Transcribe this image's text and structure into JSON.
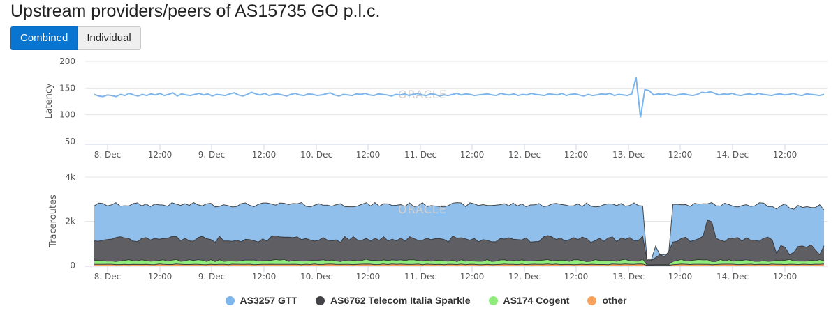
{
  "page": {
    "title": "Upstream providers/peers of AS15735 GO p.l.c.",
    "buttons": {
      "combined": "Combined",
      "individual": "Individual"
    }
  },
  "colors": {
    "latency": "#7cb5ec",
    "gtt": "#90bfec",
    "sparkle": "#5f5f63",
    "cogent": "#90ed7d",
    "other": "#f7a35c",
    "grid": "#e6e6e6"
  },
  "watermark": "ORACLE",
  "chart_data": [
    {
      "type": "line",
      "ylabel": "Latency",
      "ylim": [
        50,
        200
      ],
      "yticks": [
        "50",
        "100",
        "150",
        "200"
      ],
      "x_ticks": [
        "8. Dec",
        "12:00",
        "9. Dec",
        "12:00",
        "10. Dec",
        "12:00",
        "11. Dec",
        "12:00",
        "12. Dec",
        "12:00",
        "13. Dec",
        "12:00",
        "14. Dec",
        "12:00"
      ],
      "series": [
        {
          "name": "",
          "values": [
            138,
            135,
            134,
            137,
            136,
            134,
            138,
            136,
            140,
            137,
            135,
            138,
            136,
            139,
            137,
            140,
            136,
            138,
            141,
            135,
            139,
            137,
            136,
            138,
            140,
            137,
            139,
            135,
            138,
            137,
            136,
            139,
            141,
            137,
            135,
            138,
            142,
            139,
            137,
            140,
            136,
            138,
            139,
            137,
            135,
            138,
            140,
            137,
            136,
            139,
            138,
            136,
            137,
            139,
            141,
            137,
            135,
            138,
            137,
            136,
            139,
            138,
            140,
            137,
            136,
            139,
            138,
            137,
            135,
            138,
            137,
            139,
            136,
            138,
            140,
            137,
            136,
            139,
            138,
            135,
            137,
            136,
            138,
            140,
            137,
            139,
            138,
            136,
            137,
            138,
            139,
            137,
            136,
            140,
            138,
            137,
            139,
            136,
            138,
            137,
            140,
            138,
            137,
            136,
            139,
            138,
            137,
            140,
            136,
            138,
            139,
            137,
            135,
            138,
            136,
            137,
            139,
            138,
            140,
            136,
            138,
            137,
            136,
            139,
            138,
            137,
            136,
            138,
            137,
            139,
            138,
            140,
            137,
            136,
            138,
            139,
            137,
            136,
            138,
            142,
            141,
            143,
            140,
            137,
            139,
            138,
            140,
            137,
            136,
            138,
            139,
            137,
            140,
            138,
            137,
            136,
            138,
            139,
            137,
            138,
            140,
            137,
            136,
            139,
            138,
            137,
            136,
            138
          ]
        }
      ]
    },
    {
      "type": "area",
      "ylabel": "Traceroutes",
      "ylim": [
        0,
        4000
      ],
      "yticks": [
        "0",
        "2k",
        "4k"
      ],
      "x_ticks": [
        "8. Dec",
        "12:00",
        "9. Dec",
        "12:00",
        "10. Dec",
        "12:00",
        "11. Dec",
        "12:00",
        "12. Dec",
        "12:00",
        "13. Dec",
        "12:00",
        "14. Dec",
        "12:00"
      ],
      "stacking": "normal",
      "series": [
        {
          "name": "other",
          "values": []
        },
        {
          "name": "AS174 Cogent",
          "values": []
        },
        {
          "name": "AS6762 Telecom Italia Sparkle",
          "values": []
        },
        {
          "name": "AS3257 GTT",
          "values": []
        }
      ]
    }
  ],
  "legend": [
    {
      "label": "AS3257 GTT",
      "color": "#7cb5ec"
    },
    {
      "label": "AS6762 Telecom Italia Sparkle",
      "color": "#434348"
    },
    {
      "label": "AS174 Cogent",
      "color": "#90ed7d"
    },
    {
      "label": "other",
      "color": "#f7a35c"
    }
  ]
}
